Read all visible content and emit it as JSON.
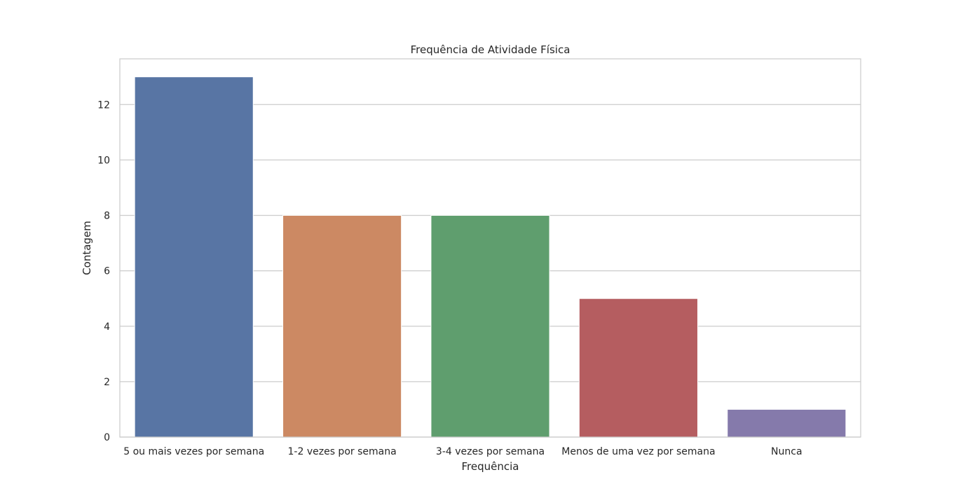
{
  "chart_data": {
    "type": "bar",
    "title": "Frequência de Atividade Física",
    "xlabel": "Frequência",
    "ylabel": "Contagem",
    "categories": [
      "5 ou mais vezes por semana",
      "1-2 vezes por semana",
      "3-4 vezes por semana",
      "Menos de uma vez por semana",
      "Nunca"
    ],
    "values": [
      13,
      8,
      8,
      5,
      1
    ],
    "colors": [
      "#5875a4",
      "#cc8963",
      "#5f9e6e",
      "#b55d60",
      "#857aab"
    ],
    "ylim": [
      0,
      13.65
    ],
    "yticks": [
      0,
      2,
      4,
      6,
      8,
      10,
      12
    ],
    "grid": "y"
  }
}
